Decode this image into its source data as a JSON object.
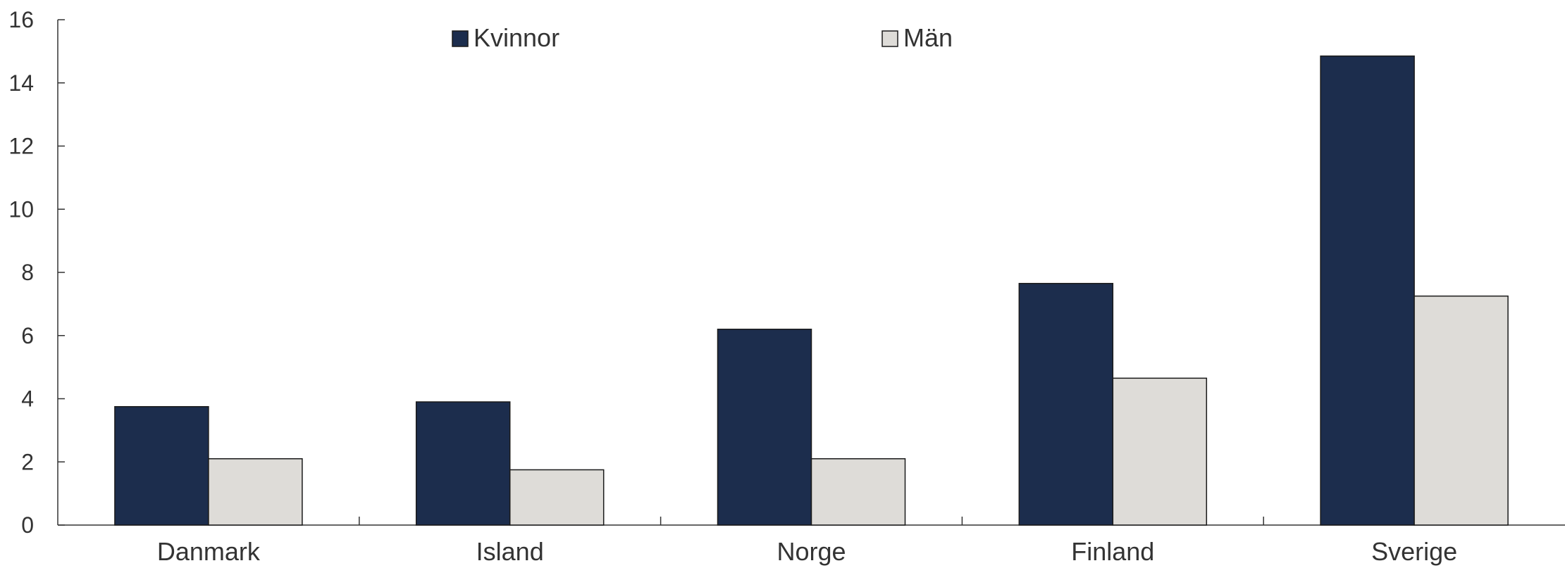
{
  "chart_data": {
    "type": "bar",
    "title": "",
    "xlabel": "",
    "ylabel": "",
    "categories": [
      "Danmark",
      "Island",
      "Norge",
      "Finland",
      "Sverige"
    ],
    "series": [
      {
        "name": "Kvinnor",
        "values": [
          3.75,
          3.9,
          6.2,
          7.65,
          14.85
        ],
        "color": "#1c2d4d"
      },
      {
        "name": "Män",
        "values": [
          2.1,
          1.75,
          2.1,
          4.65,
          7.25
        ],
        "color": "#dedcd8"
      }
    ],
    "ylim": [
      0,
      16
    ],
    "yticks": [
      "0",
      "2",
      "4",
      "6",
      "8",
      "10",
      "12",
      "14",
      "16"
    ],
    "grid": false,
    "legend_position": "top"
  }
}
